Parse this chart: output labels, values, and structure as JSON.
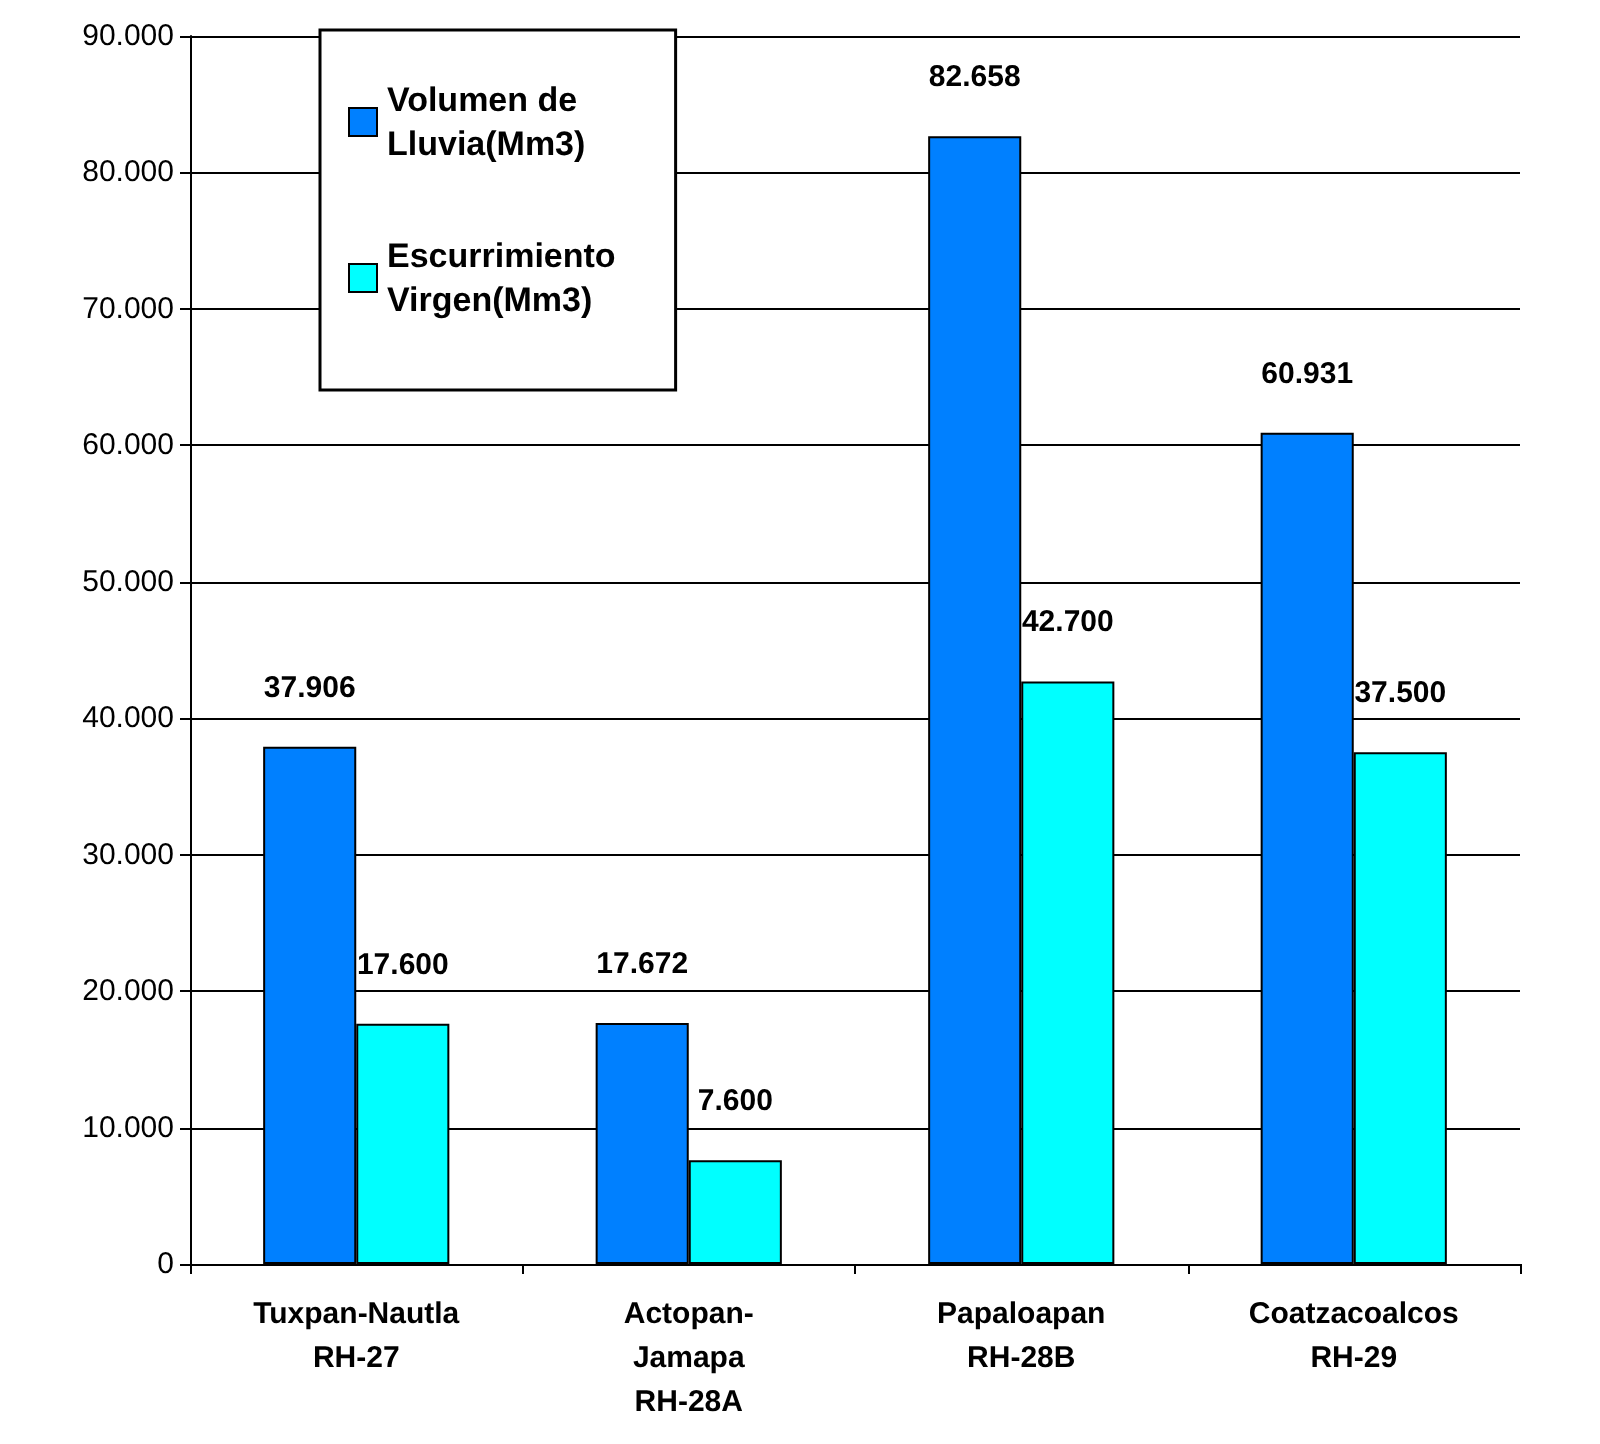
{
  "chart_data": {
    "type": "bar",
    "categories": [
      "Tuxpan-Nautla\nRH-27",
      "Actopan-\nJamapa\nRH-28A",
      "Papaloapan\nRH-28B",
      "Coatzacoalcos\nRH-29"
    ],
    "series": [
      {
        "name": "Volumen de\nLluvia(Mm3)",
        "color": "#0080ff",
        "values": [
          37906,
          17672,
          82658,
          60931
        ],
        "value_labels": [
          "37.906",
          "17.672",
          "82.658",
          "60.931"
        ]
      },
      {
        "name": "Escurrimiento\nVirgen(Mm3)",
        "color": "#00ffff",
        "values": [
          17600,
          7600,
          42700,
          37500
        ],
        "value_labels": [
          "17.600",
          "7.600",
          "42.700",
          "37.500"
        ]
      }
    ],
    "ylim": [
      0,
      90000
    ],
    "yticks": [
      0,
      {
        "value": 10000,
        "label": "10.000"
      },
      {
        "value": 20000,
        "label": "20.000"
      },
      {
        "value": 30000,
        "label": "30.000"
      },
      {
        "value": 40000,
        "label": "40.000"
      },
      {
        "value": 50000,
        "label": "50.000"
      },
      {
        "value": 60000,
        "label": "60.000"
      },
      {
        "value": 70000,
        "label": "70.000"
      },
      {
        "value": 80000,
        "label": "80.000"
      },
      {
        "value": 90000,
        "label": "90.000"
      }
    ],
    "grid": "y",
    "legend": "top left"
  }
}
